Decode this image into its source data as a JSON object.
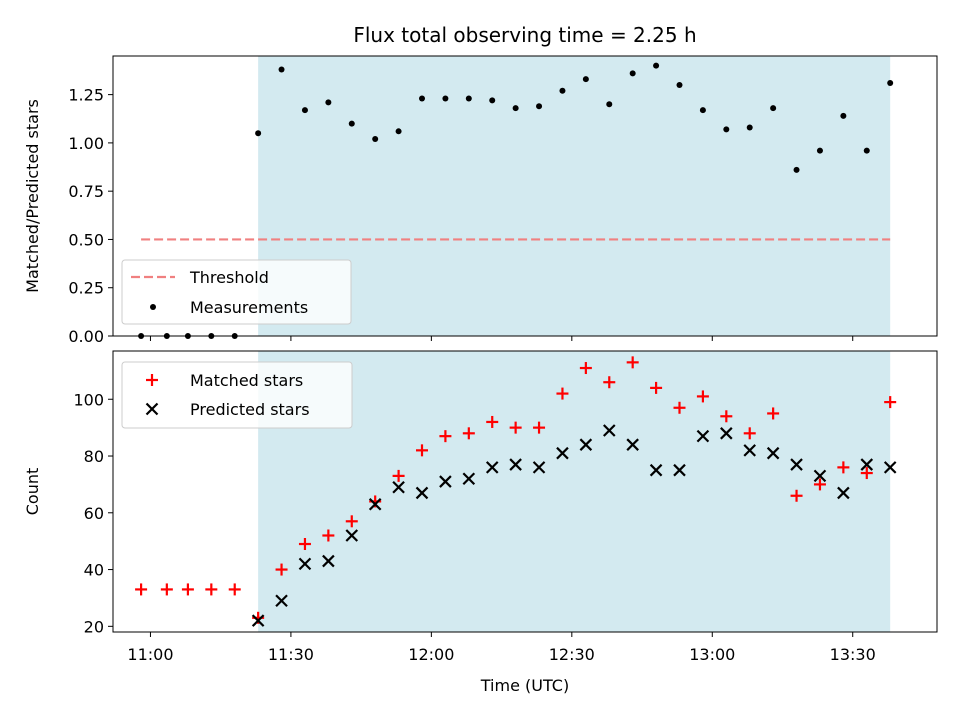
{
  "chart_data": [
    {
      "type": "scatter",
      "title": "Flux total observing time = 2.25 h",
      "xlabel": "",
      "ylabel": "Matched/Predicted stars",
      "ylim": [
        0.0,
        1.45
      ],
      "yticks": [
        "0.00",
        "0.25",
        "0.50",
        "0.75",
        "1.00",
        "1.25"
      ],
      "xlim_minutes": [
        -8,
        168
      ],
      "shaded_range_minutes": [
        23,
        158
      ],
      "shade_color": "#d3eaf0",
      "threshold": {
        "name": "Threshold",
        "value": 0.5,
        "color": "#f08080",
        "style": "dashed",
        "x_range_minutes": [
          -2,
          158
        ]
      },
      "series": [
        {
          "name": "Measurements",
          "color": "#000000",
          "marker": "dot",
          "x_minutes": [
            -2,
            3.5,
            8,
            13,
            18,
            23,
            28,
            33,
            38,
            43,
            48,
            53,
            58,
            63,
            68,
            73,
            78,
            83,
            88,
            93,
            98,
            103,
            108,
            113,
            118,
            123,
            128,
            133,
            138,
            143,
            148,
            153,
            158
          ],
          "values": [
            0,
            0,
            0,
            0,
            0,
            1.05,
            1.38,
            1.17,
            1.21,
            1.1,
            1.02,
            1.06,
            1.23,
            1.23,
            1.23,
            1.22,
            1.18,
            1.19,
            1.27,
            1.33,
            1.2,
            1.36,
            1.4,
            1.3,
            1.17,
            1.07,
            1.08,
            1.18,
            0.86,
            0.96,
            1.14,
            0.96,
            1.31
          ]
        }
      ],
      "legend_position": "lower-left"
    },
    {
      "type": "scatter",
      "title": "",
      "xlabel": "Time (UTC)",
      "ylabel": "Count",
      "ylim": [
        18,
        117
      ],
      "yticks": [
        "20",
        "40",
        "60",
        "80",
        "100"
      ],
      "xlim_minutes": [
        -8,
        168
      ],
      "xticks": [
        "11:00",
        "11:30",
        "12:00",
        "12:30",
        "13:00",
        "13:30"
      ],
      "shaded_range_minutes": [
        23,
        158
      ],
      "series": [
        {
          "name": "Matched stars",
          "color": "#ff0000",
          "marker": "plus",
          "x_minutes": [
            -2,
            3.5,
            8,
            13,
            18,
            23,
            28,
            33,
            38,
            43,
            48,
            53,
            58,
            63,
            68,
            73,
            78,
            83,
            88,
            93,
            98,
            103,
            108,
            113,
            118,
            123,
            128,
            133,
            138,
            143,
            148,
            153,
            158
          ],
          "values": [
            33,
            33,
            33,
            33,
            33,
            23,
            40,
            49,
            52,
            57,
            64,
            73,
            82,
            87,
            88,
            92,
            90,
            90,
            102,
            111,
            106,
            113,
            104,
            97,
            101,
            94,
            88,
            95,
            66,
            70,
            76,
            74,
            99
          ]
        },
        {
          "name": "Predicted stars",
          "color": "#000000",
          "marker": "x",
          "x_minutes": [
            23,
            28,
            33,
            38,
            43,
            48,
            53,
            58,
            63,
            68,
            73,
            78,
            83,
            88,
            93,
            98,
            103,
            108,
            113,
            118,
            123,
            128,
            133,
            138,
            143,
            148,
            153,
            158
          ],
          "values": [
            22,
            29,
            42,
            43,
            52,
            63,
            69,
            67,
            71,
            72,
            76,
            77,
            76,
            81,
            84,
            89,
            84,
            75,
            75,
            87,
            88,
            82,
            81,
            77,
            73,
            67,
            77,
            76
          ]
        }
      ],
      "legend_position": "upper-left"
    }
  ]
}
